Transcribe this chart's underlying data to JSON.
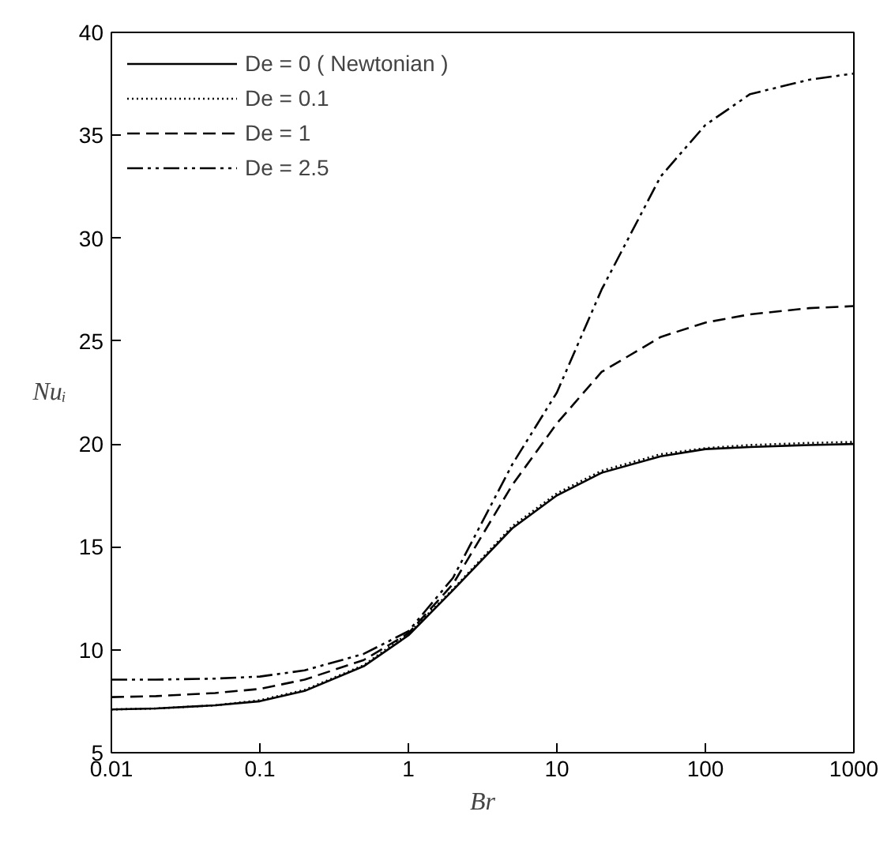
{
  "chart_data": {
    "type": "line",
    "xlabel": "Br",
    "ylabel": "Nuᵢ",
    "log": "x",
    "xlim": [
      0.01,
      1000
    ],
    "xticks": [
      {
        "value": 0.01,
        "label": "0.01"
      },
      {
        "value": 0.1,
        "label": "0.1"
      },
      1,
      10,
      100,
      1000
    ],
    "ylim": [
      5,
      40
    ],
    "yticks": [
      5,
      10,
      15,
      20,
      25,
      30,
      35,
      40
    ],
    "grid": false,
    "legend": "top left",
    "x": [
      0.01,
      0.02,
      0.05,
      0.1,
      0.2,
      0.5,
      1,
      2,
      5,
      10,
      20,
      50,
      100,
      200,
      500,
      1000
    ],
    "series": [
      {
        "name": "De = 0 ( Newtonian )",
        "color": "#000000",
        "line_style": "solid",
        "values": [
          7.1,
          7.15,
          7.3,
          7.5,
          8.0,
          9.2,
          10.7,
          12.9,
          15.9,
          17.5,
          18.6,
          19.4,
          19.75,
          19.85,
          19.95,
          20.0
        ]
      },
      {
        "name": "De = 0.1",
        "color": "#000000",
        "line_style": "dotted",
        "values": [
          7.1,
          7.15,
          7.3,
          7.55,
          8.05,
          9.25,
          10.8,
          12.95,
          16.0,
          17.6,
          18.7,
          19.5,
          19.8,
          19.95,
          20.05,
          20.1
        ]
      },
      {
        "name": "De = 1",
        "color": "#000000",
        "line_style": "dashed",
        "values": [
          7.7,
          7.75,
          7.9,
          8.1,
          8.55,
          9.5,
          10.8,
          13.2,
          18.0,
          21.0,
          23.5,
          25.2,
          25.9,
          26.3,
          26.6,
          26.7
        ]
      },
      {
        "name": "De = 2.5",
        "color": "#000000",
        "line_style": "dashdotdot",
        "values": [
          8.55,
          8.55,
          8.6,
          8.7,
          9.0,
          9.8,
          10.9,
          13.5,
          19.0,
          22.5,
          27.5,
          33.0,
          35.5,
          37.0,
          37.7,
          38.0
        ]
      }
    ]
  }
}
